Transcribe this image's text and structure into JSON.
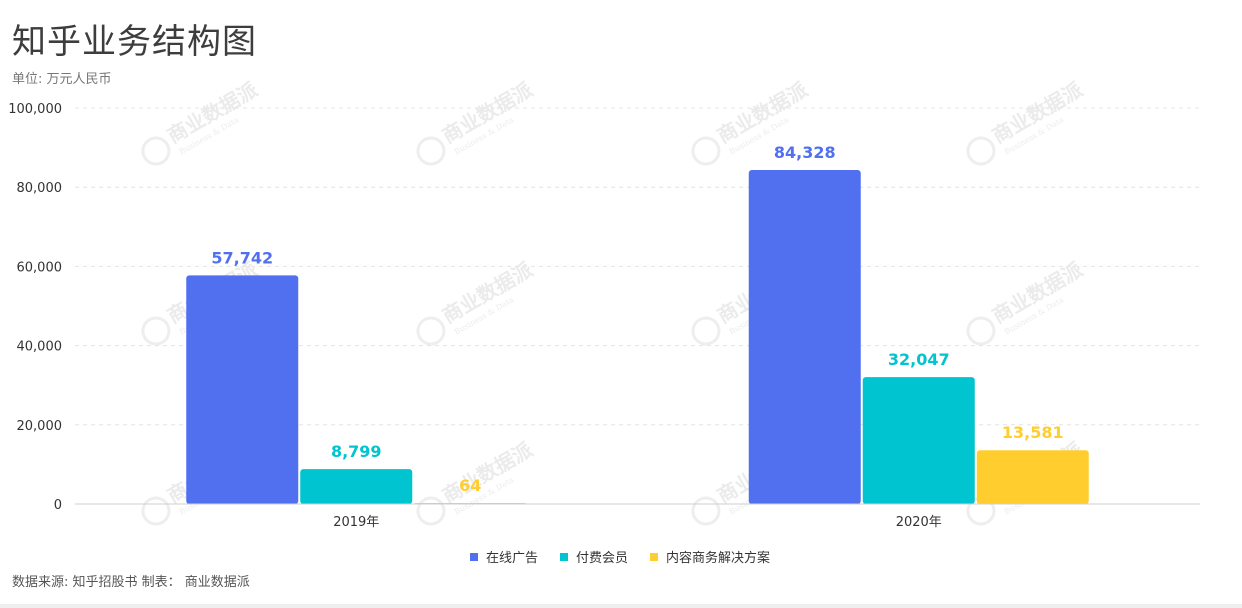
{
  "title": "知乎业务结构图",
  "unit_label": "单位: 万元人民币",
  "source_label": "数据来源: 知乎招股书 制表： 商业数据派",
  "watermark": {
    "text": "商业数据派",
    "subtext": "Business & Data"
  },
  "chart_data": {
    "type": "bar",
    "categories": [
      "2019年",
      "2020年"
    ],
    "series": [
      {
        "name": "在线广告",
        "values": [
          57742,
          84328
        ],
        "labels": [
          "57,742",
          "84,328"
        ],
        "color": "#5170F0"
      },
      {
        "name": "付费会员",
        "values": [
          8799,
          32047
        ],
        "labels": [
          "8,799",
          "32,047"
        ],
        "color": "#00C4CF"
      },
      {
        "name": "内容商务解决方案",
        "values": [
          64,
          13581
        ],
        "labels": [
          "64",
          "13,581"
        ],
        "color": "#FFCE2E"
      }
    ],
    "yticks": [
      "0",
      "20,000",
      "40,000",
      "60,000",
      "80,000",
      "100,000"
    ],
    "ylim": [
      0,
      100000
    ],
    "grid": true,
    "legend_position": "bottom-center"
  }
}
